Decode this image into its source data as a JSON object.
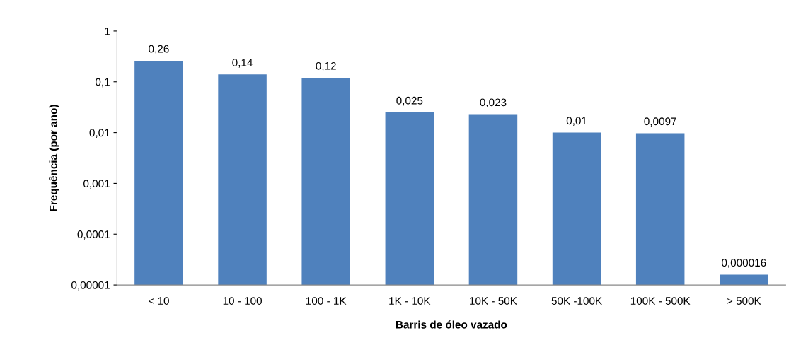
{
  "chart_data": {
    "type": "bar",
    "xlabel": "Barris de óleo vazado",
    "ylabel": "Frequência (por ano)",
    "categories": [
      "< 10",
      "10 - 100",
      "100 - 1K",
      "1K - 10K",
      "10K - 50K",
      "50K -100K",
      "100K - 500K",
      "> 500K"
    ],
    "values": [
      0.26,
      0.14,
      0.12,
      0.025,
      0.023,
      0.01,
      0.0097,
      1.6e-05
    ],
    "value_labels": [
      "0,26",
      "0,14",
      "0,12",
      "0,025",
      "0,023",
      "0,01",
      "0,0097",
      "0,000016"
    ],
    "color": "#4f81bd",
    "log": true,
    "ylim": [
      1e-05,
      1
    ],
    "yticks": [
      {
        "value": 1e-05,
        "label": "0,00001"
      },
      {
        "value": 0.0001,
        "label": "0,0001"
      },
      {
        "value": 0.001,
        "label": "0,001"
      },
      {
        "value": 0.01,
        "label": "0,01"
      },
      {
        "value": 0.1,
        "label": "0,1"
      },
      {
        "value": 1,
        "label": "1"
      }
    ],
    "grid": false
  }
}
